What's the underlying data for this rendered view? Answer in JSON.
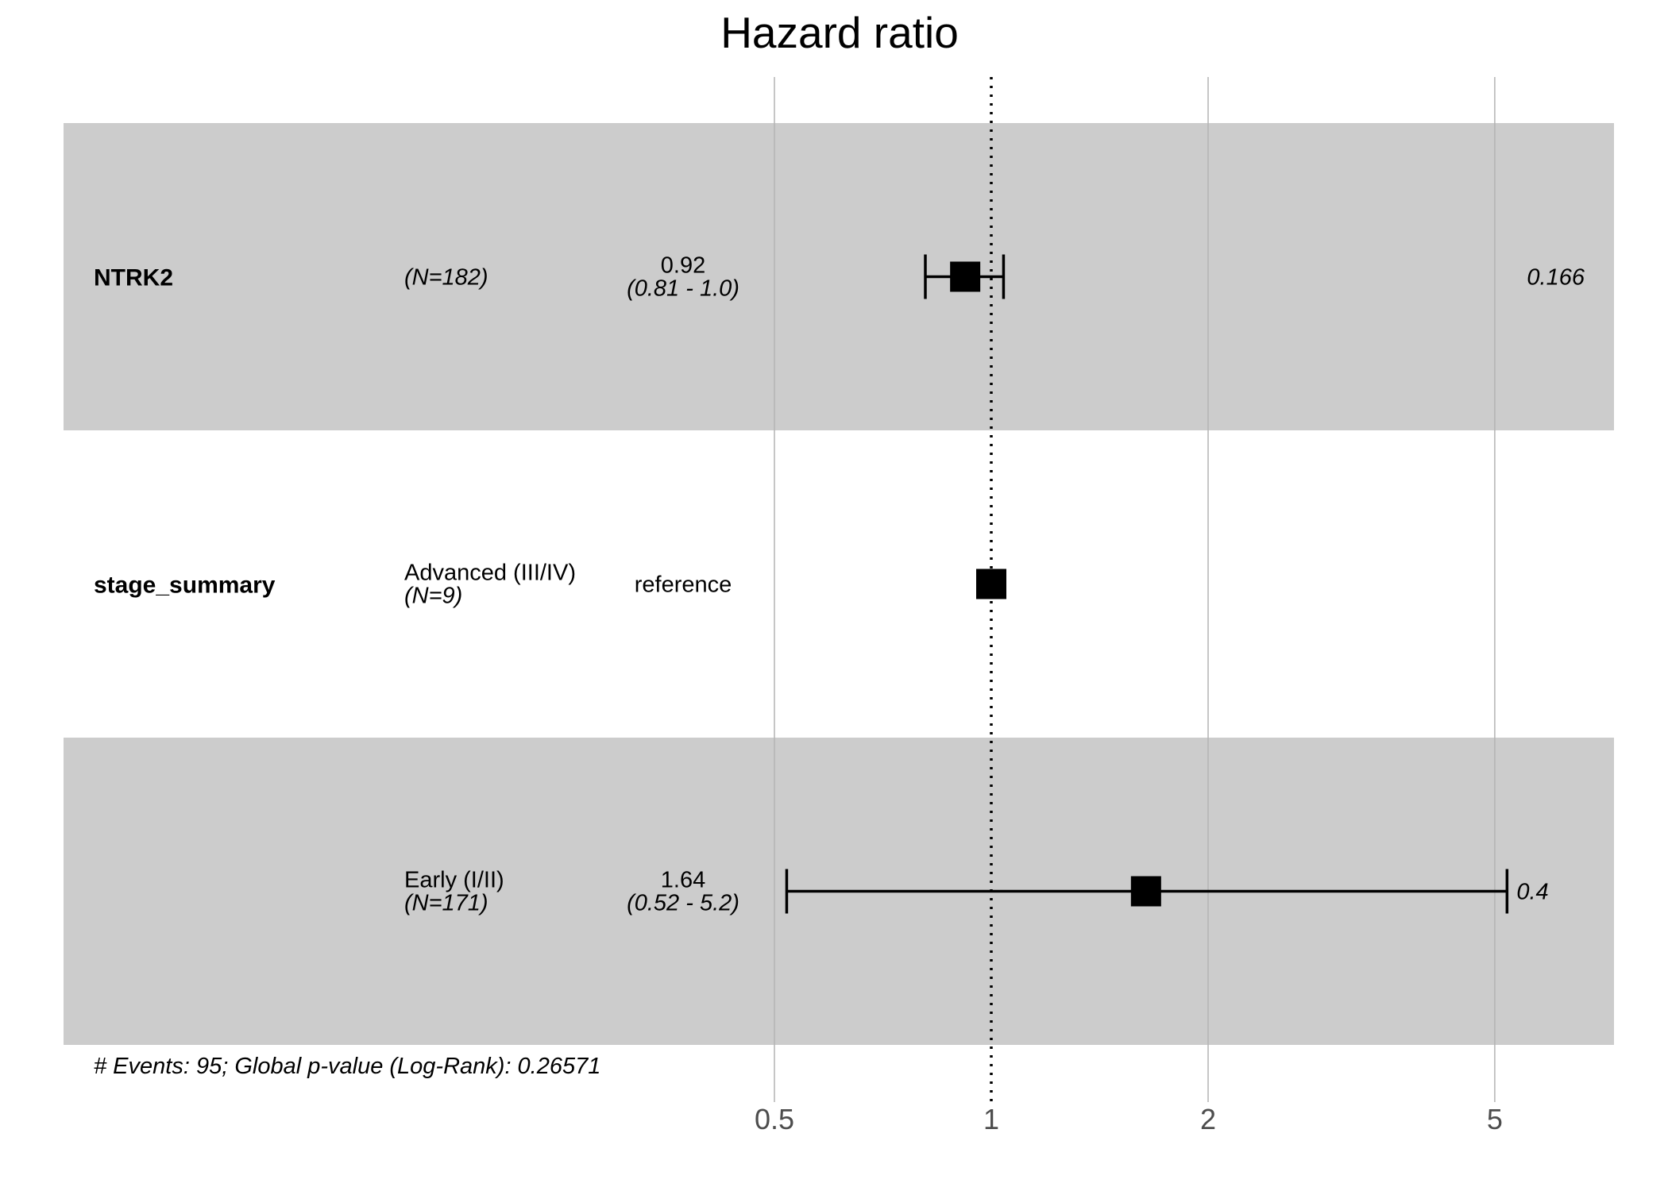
{
  "chart_data": {
    "type": "forest",
    "title": "Hazard ratio",
    "x_scale": "log",
    "x_ticks": [
      0.5,
      1,
      2,
      5
    ],
    "x_tick_labels": [
      "0.5",
      "1",
      "2",
      "5"
    ],
    "reference_line": 1,
    "rows": [
      {
        "variable": "NTRK2",
        "level": "",
        "n_label": "(N=182)",
        "estimate_label": "0.92",
        "ci_label": "(0.81 - 1.0)",
        "p_label": "0.166",
        "hr": 0.92,
        "lower": 0.81,
        "upper": 1.04,
        "shaded": true
      },
      {
        "variable": "stage_summary",
        "level": "Advanced (III/IV)",
        "n_label": "(N=9)",
        "estimate_label": "reference",
        "ci_label": "",
        "p_label": "",
        "hr": 1,
        "lower": null,
        "upper": null,
        "shaded": false
      },
      {
        "variable": "",
        "level": "Early (I/II)",
        "n_label": "(N=171)",
        "estimate_label": "1.64",
        "ci_label": "(0.52 - 5.2)",
        "p_label": "0.4",
        "hr": 1.64,
        "lower": 0.52,
        "upper": 5.2,
        "shaded": true
      }
    ],
    "footnote": "# Events: 95; Global p-value (Log-Rank): 0.26571",
    "colors": {
      "band": "#cccccc",
      "grid": "#b3b3b3",
      "marks": "#000000"
    }
  }
}
